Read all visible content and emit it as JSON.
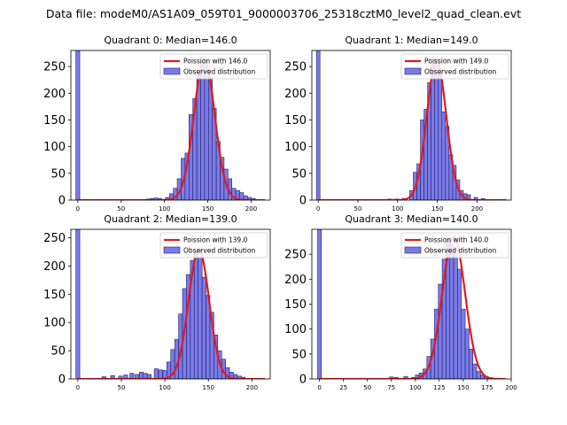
{
  "figure": {
    "suptitle": "Data file: modeM0/AS1A09_059T01_9000003706_25318cztM0_level2_quad_clean.evt"
  },
  "colors": {
    "bar_fill": "#7b7be6",
    "bar_edge": "#1f1f6e",
    "curve": "#e31a1c",
    "axes": "#000000"
  },
  "chart_data": [
    {
      "type": "bar",
      "title": "Quadrant 0: Median=146.0",
      "xlim": [
        -8,
        222
      ],
      "ylim": [
        0,
        280
      ],
      "xticks": [
        0,
        50,
        100,
        150,
        200
      ],
      "yticks": [
        0,
        50,
        100,
        150,
        200,
        250
      ],
      "bin_width": 4.5,
      "legend": {
        "placement": "top-right",
        "curve_label": "Poission with 146.0",
        "bar_label": "Observed distribution"
      },
      "poisson": {
        "mean": 146,
        "peak": 262
      },
      "bins": [
        {
          "x": 0,
          "y": 280
        },
        {
          "x": 81,
          "y": 2
        },
        {
          "x": 85.5,
          "y": 3
        },
        {
          "x": 90,
          "y": 4
        },
        {
          "x": 94.5,
          "y": 3
        },
        {
          "x": 103.5,
          "y": 5
        },
        {
          "x": 108,
          "y": 12
        },
        {
          "x": 112.5,
          "y": 22
        },
        {
          "x": 117,
          "y": 40
        },
        {
          "x": 121.5,
          "y": 78
        },
        {
          "x": 126,
          "y": 88
        },
        {
          "x": 130.5,
          "y": 160
        },
        {
          "x": 135,
          "y": 190
        },
        {
          "x": 139.5,
          "y": 240
        },
        {
          "x": 144,
          "y": 258
        },
        {
          "x": 148.5,
          "y": 250
        },
        {
          "x": 153,
          "y": 230
        },
        {
          "x": 157.5,
          "y": 172
        },
        {
          "x": 162,
          "y": 110
        },
        {
          "x": 166.5,
          "y": 80
        },
        {
          "x": 171,
          "y": 58
        },
        {
          "x": 175.5,
          "y": 40
        },
        {
          "x": 180,
          "y": 22
        },
        {
          "x": 184.5,
          "y": 18
        },
        {
          "x": 189,
          "y": 14
        },
        {
          "x": 193.5,
          "y": 8
        },
        {
          "x": 198,
          "y": 5
        },
        {
          "x": 202.5,
          "y": 3
        }
      ]
    },
    {
      "type": "bar",
      "title": "Quadrant 1: Median=149.0",
      "xlim": [
        -8,
        243
      ],
      "ylim": [
        0,
        280
      ],
      "xticks": [
        0,
        50,
        100,
        150,
        200
      ],
      "yticks": [
        0,
        50,
        100,
        150,
        200,
        250
      ],
      "bin_width": 4.5,
      "legend": {
        "placement": "top-right",
        "curve_label": "Poission with 149.0",
        "bar_label": "Observed distribution"
      },
      "poisson": {
        "mean": 149,
        "peak": 262
      },
      "bins": [
        {
          "x": 0,
          "y": 280
        },
        {
          "x": 90,
          "y": 2
        },
        {
          "x": 99,
          "y": 2
        },
        {
          "x": 108,
          "y": 3
        },
        {
          "x": 117.5,
          "y": 18
        },
        {
          "x": 122,
          "y": 52
        },
        {
          "x": 126.5,
          "y": 68
        },
        {
          "x": 131,
          "y": 150
        },
        {
          "x": 135.5,
          "y": 170
        },
        {
          "x": 140,
          "y": 220
        },
        {
          "x": 144.5,
          "y": 258
        },
        {
          "x": 149,
          "y": 265
        },
        {
          "x": 153.5,
          "y": 235
        },
        {
          "x": 158,
          "y": 165
        },
        {
          "x": 162.5,
          "y": 138
        },
        {
          "x": 167,
          "y": 85
        },
        {
          "x": 171.5,
          "y": 65
        },
        {
          "x": 176,
          "y": 38
        },
        {
          "x": 180.5,
          "y": 18
        },
        {
          "x": 185,
          "y": 12
        },
        {
          "x": 189.5,
          "y": 10
        },
        {
          "x": 198.5,
          "y": 5
        },
        {
          "x": 207.5,
          "y": 3
        }
      ]
    },
    {
      "type": "bar",
      "title": "Quadrant 2: Median=139.0",
      "xlim": [
        -8,
        221
      ],
      "ylim": [
        0,
        265
      ],
      "xticks": [
        0,
        50,
        100,
        150,
        200
      ],
      "yticks": [
        0,
        50,
        100,
        150,
        200,
        250
      ],
      "bin_width": 4.5,
      "legend": {
        "placement": "top-right",
        "curve_label": "Poission with 139.0",
        "bar_label": "Observed distribution"
      },
      "poisson": {
        "mean": 139,
        "peak": 230
      },
      "bins": [
        {
          "x": 0,
          "y": 265
        },
        {
          "x": 30,
          "y": 4
        },
        {
          "x": 40,
          "y": 6
        },
        {
          "x": 49,
          "y": 5
        },
        {
          "x": 55,
          "y": 7
        },
        {
          "x": 62,
          "y": 10
        },
        {
          "x": 68,
          "y": 8
        },
        {
          "x": 73,
          "y": 12
        },
        {
          "x": 77.5,
          "y": 10
        },
        {
          "x": 82,
          "y": 8
        },
        {
          "x": 90,
          "y": 18
        },
        {
          "x": 95,
          "y": 16
        },
        {
          "x": 100,
          "y": 15
        },
        {
          "x": 104.5,
          "y": 30
        },
        {
          "x": 109,
          "y": 52
        },
        {
          "x": 113.5,
          "y": 70
        },
        {
          "x": 118,
          "y": 115
        },
        {
          "x": 122.5,
          "y": 160
        },
        {
          "x": 127,
          "y": 185
        },
        {
          "x": 131.5,
          "y": 210
        },
        {
          "x": 136,
          "y": 225
        },
        {
          "x": 140.5,
          "y": 215
        },
        {
          "x": 145,
          "y": 180
        },
        {
          "x": 149.5,
          "y": 148
        },
        {
          "x": 154,
          "y": 118
        },
        {
          "x": 158.5,
          "y": 78
        },
        {
          "x": 163,
          "y": 50
        },
        {
          "x": 167.5,
          "y": 35
        },
        {
          "x": 172,
          "y": 20
        },
        {
          "x": 176.5,
          "y": 12
        },
        {
          "x": 181,
          "y": 8
        },
        {
          "x": 185.5,
          "y": 5
        },
        {
          "x": 190,
          "y": 3
        }
      ]
    },
    {
      "type": "bar",
      "title": "Quadrant 3: Median=140.0",
      "xlim": [
        -8,
        200
      ],
      "ylim": [
        0,
        300
      ],
      "xticks": [
        0,
        25,
        50,
        75,
        100,
        125,
        150,
        175,
        200
      ],
      "yticks": [
        0,
        50,
        100,
        150,
        200,
        250
      ],
      "bin_width": 4.0,
      "legend": {
        "placement": "top-right",
        "curve_label": "Poission with 140.0",
        "bar_label": "Observed distribution"
      },
      "poisson": {
        "mean": 140,
        "peak": 285
      },
      "bins": [
        {
          "x": 0,
          "y": 300
        },
        {
          "x": 75,
          "y": 4
        },
        {
          "x": 80,
          "y": 3
        },
        {
          "x": 90,
          "y": 5
        },
        {
          "x": 98,
          "y": 3
        },
        {
          "x": 102,
          "y": 8
        },
        {
          "x": 106,
          "y": 12
        },
        {
          "x": 110,
          "y": 20
        },
        {
          "x": 114,
          "y": 45
        },
        {
          "x": 118,
          "y": 80
        },
        {
          "x": 122,
          "y": 140
        },
        {
          "x": 126,
          "y": 190
        },
        {
          "x": 130,
          "y": 240
        },
        {
          "x": 134,
          "y": 280
        },
        {
          "x": 138,
          "y": 270
        },
        {
          "x": 142,
          "y": 250
        },
        {
          "x": 146,
          "y": 220
        },
        {
          "x": 150,
          "y": 140
        },
        {
          "x": 154,
          "y": 100
        },
        {
          "x": 158,
          "y": 60
        },
        {
          "x": 162,
          "y": 30
        },
        {
          "x": 166,
          "y": 15
        },
        {
          "x": 170,
          "y": 8
        },
        {
          "x": 174,
          "y": 5
        },
        {
          "x": 178,
          "y": 3
        }
      ]
    }
  ]
}
